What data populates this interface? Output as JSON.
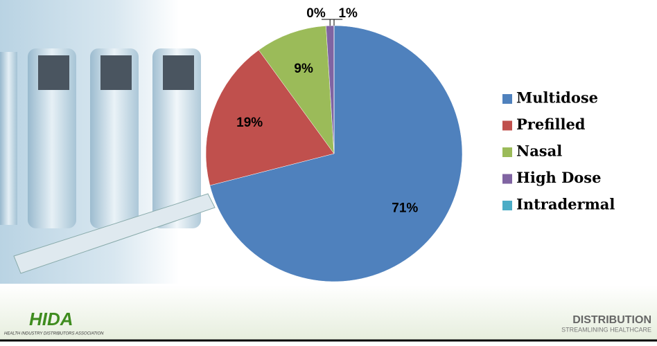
{
  "chart_data": {
    "type": "pie",
    "categories": [
      "Multidose",
      "Prefilled",
      "Nasal",
      "High Dose",
      "Intradermal"
    ],
    "values": [
      71,
      19,
      9,
      1,
      0
    ],
    "value_labels": [
      "71%",
      "19%",
      "9%",
      "1%",
      "0%"
    ],
    "colors": [
      "#4f81bd",
      "#c0504d",
      "#9bbb59",
      "#8064a2",
      "#4bacc6"
    ],
    "legend": "right"
  },
  "footer": {
    "logo": "HIDA",
    "association": "HEALTH INDUSTRY DISTRIBUTORS ASSOCIATION",
    "brand": "DISTRIBUTION",
    "tagline": "STREAMLINING HEALTHCARE"
  }
}
